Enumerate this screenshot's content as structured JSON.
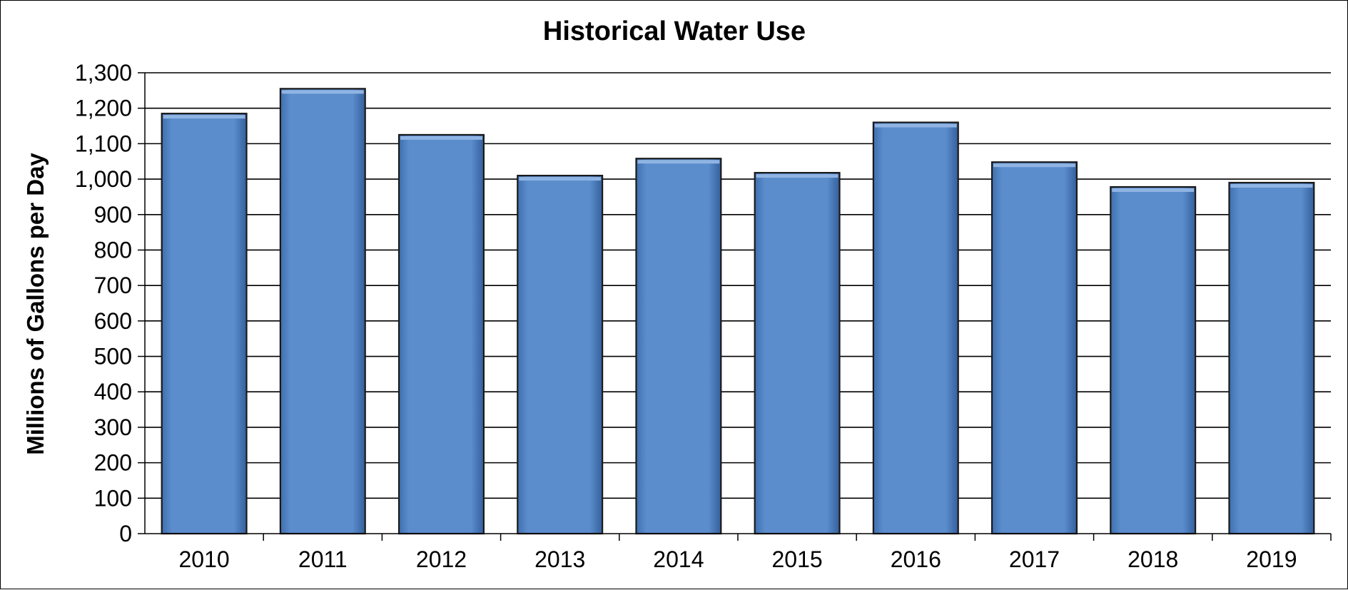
{
  "chart_data": {
    "type": "bar",
    "title": "Historical Water Use",
    "xlabel": "",
    "ylabel": "Millions of Gallons per Day",
    "categories": [
      "2010",
      "2011",
      "2012",
      "2013",
      "2014",
      "2015",
      "2016",
      "2017",
      "2018",
      "2019"
    ],
    "values": [
      1185,
      1255,
      1125,
      1010,
      1058,
      1018,
      1160,
      1048,
      978,
      990
    ],
    "ylim": [
      0,
      1300
    ],
    "ytick_values": [
      0,
      100,
      200,
      300,
      400,
      500,
      600,
      700,
      800,
      900,
      1000,
      1100,
      1200,
      1300
    ],
    "ytick_labels": [
      "0",
      "100",
      "200",
      "300",
      "400",
      "500",
      "600",
      "700",
      "800",
      "900",
      "1,000",
      "1,100",
      "1,200",
      "1,300"
    ],
    "grid": true,
    "legend": "none",
    "colors": {
      "bar_fill": "#5b8dcd",
      "bar_top": "#8fb4e3",
      "bar_edge": "#1a1a1a",
      "grid": "#000000"
    }
  }
}
